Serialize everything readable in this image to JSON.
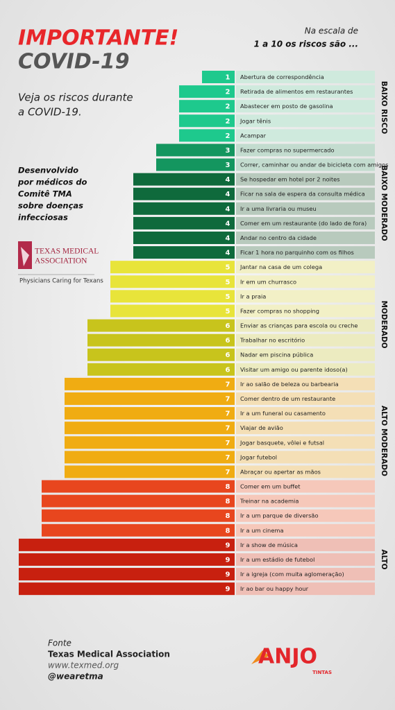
{
  "chart_data": {
    "type": "bar",
    "title": "IMPORTANTE!",
    "subtitle": "COVID-19",
    "scale_note": [
      "Na escala de",
      "1 a 10 os riscos são ..."
    ],
    "intro": [
      "Veja os riscos durante",
      "a COVID-19."
    ],
    "credit": [
      "Desenvolvido",
      "por médicos do",
      "Comitê TMA",
      "sobre doenças",
      "infecciosas"
    ],
    "logo": [
      "TEXAS MEDICAL",
      "ASSOCIATION",
      "Physicians Caring for Texans"
    ],
    "source": [
      "Fonte",
      "Texas Medical Association",
      "www.texmed.org",
      "@wearetma"
    ],
    "brand": [
      "ANJO",
      "TINTAS"
    ],
    "risk_groups": [
      "BAIXO RISCO",
      "BAIXO MODERADO",
      "MODERADO",
      "ALTO MODERADO",
      "ALTO"
    ],
    "categories": [
      "Abertura de correspondência",
      "Retirada de alimentos em restaurantes",
      "Abastecer em posto de gasolina",
      "Jogar tênis",
      "Acampar",
      "Fazer compras no supermercado",
      "Correr, caminhar ou andar de bicicleta com amigos",
      "Se hospedar em hotel por 2 noites",
      "Ficar na sala de espera da consulta médica",
      "Ir a uma livraria ou museu",
      "Comer em um restaurante (do lado de fora)",
      "Andar no centro da cidade",
      "Ficar 1 hora no parquinho com os filhos",
      "Jantar na casa de um colega",
      "Ir em um churrasco",
      "Ir a praia",
      "Fazer compras no shopping",
      "Enviar as crianças para escola ou creche",
      "Trabalhar no escritório",
      "Nadar em piscina pública",
      "Visitar um amigo ou parente idoso(a)",
      "Ir ao salão de beleza ou barbearia",
      "Comer dentro de um restaurante",
      "Ir a um funeral ou casamento",
      "Viajar de avião",
      "Jogar basquete, vôlei e futsal",
      "Jogar futebol",
      "Abraçar ou apertar as mãos",
      "Comer em um buffet",
      "Treinar na academia",
      "Ir a um parque de diversão",
      "Ir a um cinema",
      "Ir a show de música",
      "Ir a um estádio de futebol",
      "Ir a igreja (com muita aglomeração)",
      "Ir ao bar ou happy hour"
    ],
    "values": [
      1,
      2,
      2,
      2,
      2,
      3,
      3,
      4,
      4,
      4,
      4,
      4,
      4,
      5,
      5,
      5,
      5,
      6,
      6,
      6,
      6,
      7,
      7,
      7,
      7,
      7,
      7,
      7,
      8,
      8,
      8,
      8,
      9,
      9,
      9,
      9
    ],
    "colors": [
      "#1ec98d",
      "#1ec98d",
      "#1ec98d",
      "#1ec98d",
      "#1ec98d",
      "#14965f",
      "#14965f",
      "#0f6a3c",
      "#0f6a3c",
      "#0f6a3c",
      "#0f6a3c",
      "#0f6a3c",
      "#0f6a3c",
      "#e8e43a",
      "#e8e43a",
      "#e8e43a",
      "#e8e43a",
      "#c8c41c",
      "#c8c41c",
      "#c8c41c",
      "#c8c41c",
      "#f0ac12",
      "#f0ac12",
      "#f0ac12",
      "#f0ac12",
      "#f0ac12",
      "#f0ac12",
      "#f0ac12",
      "#e8461e",
      "#e8461e",
      "#e8461e",
      "#e8461e",
      "#c8200f",
      "#c8200f",
      "#c8200f",
      "#c8200f"
    ],
    "label_colors": [
      "#cfeadd",
      "#cfeadd",
      "#cfeadd",
      "#cfeadd",
      "#cfeadd",
      "#c3dccf",
      "#c3dccf",
      "#b8cabd",
      "#b8cabd",
      "#b8cabd",
      "#b8cabd",
      "#b8cabd",
      "#b8cabd",
      "#f2f0c6",
      "#f2f0c6",
      "#f2f0c6",
      "#f2f0c6",
      "#ecebc0",
      "#ecebc0",
      "#ecebc0",
      "#ecebc0",
      "#f4dfb6",
      "#f4dfb6",
      "#f4dfb6",
      "#f4dfb6",
      "#f4dfb6",
      "#f4dfb6",
      "#f4dfb6",
      "#f6c8ba",
      "#f6c8ba",
      "#f6c8ba",
      "#f6c8ba",
      "#efbfb6",
      "#efbfb6",
      "#efbfb6",
      "#efbfb6"
    ]
  }
}
